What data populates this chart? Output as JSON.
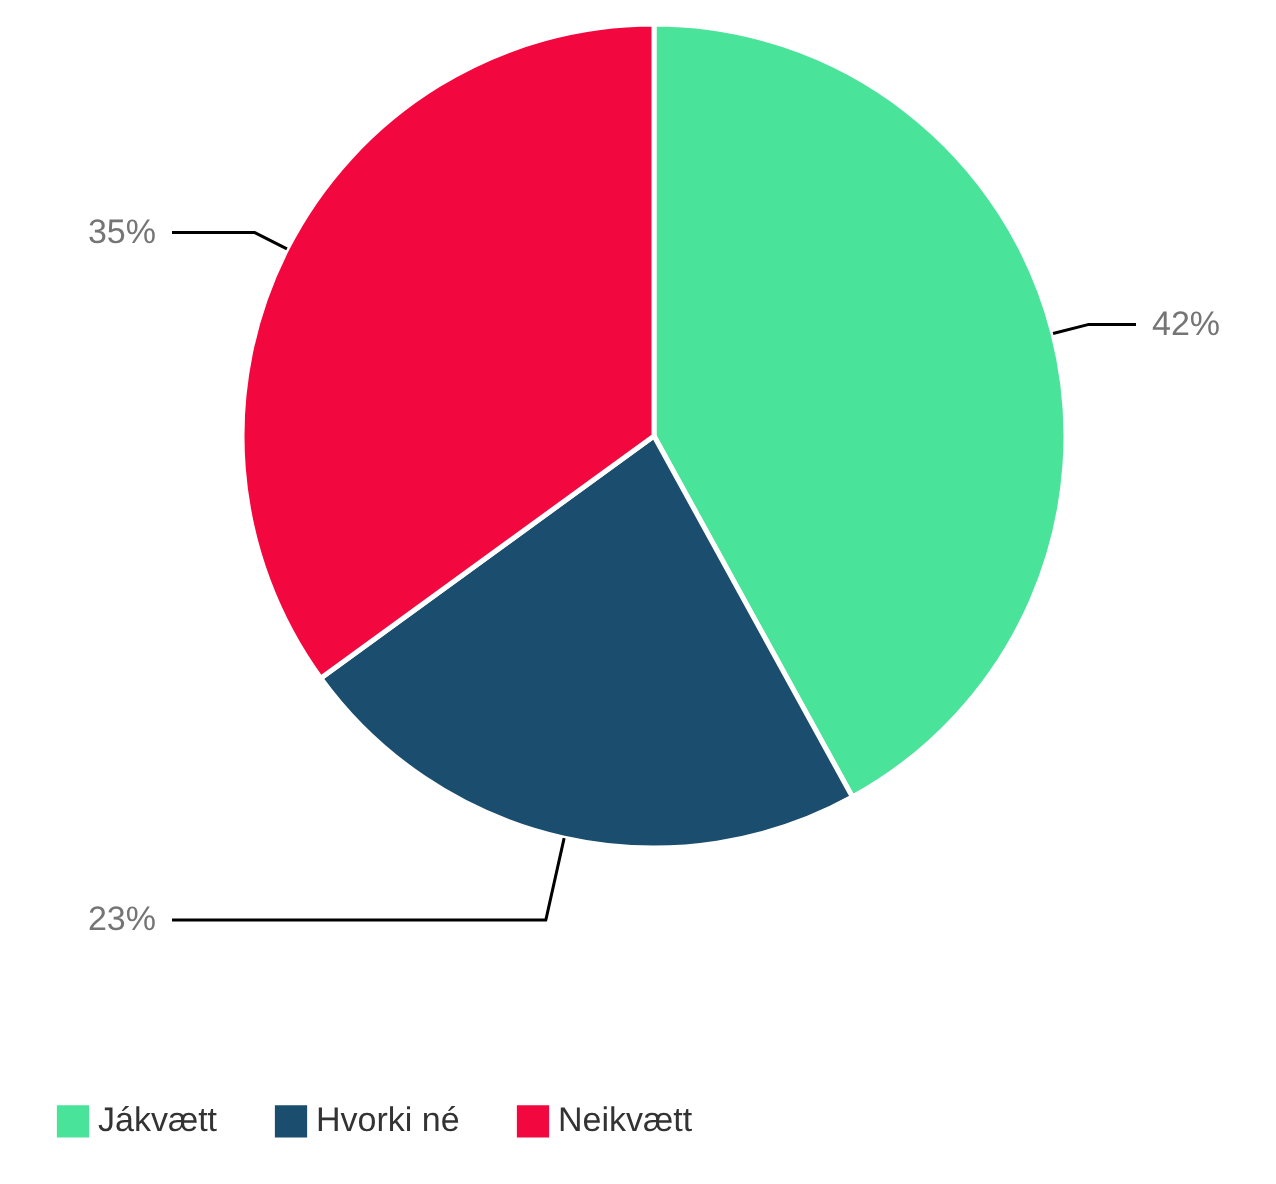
{
  "chart_data": {
    "type": "pie",
    "categories": [
      "Jákvætt",
      "Hvorki né",
      "Neikvætt"
    ],
    "values": [
      42,
      23,
      35
    ],
    "colors": [
      "#4ae39a",
      "#1a4d6e",
      "#f2083e"
    ],
    "value_labels": [
      "42%",
      "23%",
      "35%"
    ],
    "legend": "bottom left"
  }
}
